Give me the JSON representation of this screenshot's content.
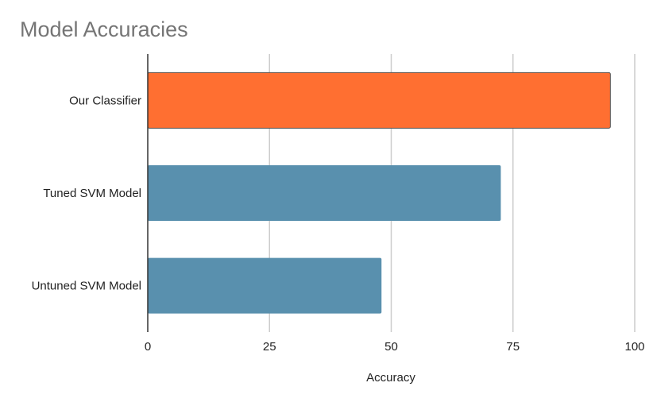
{
  "chart_data": {
    "type": "bar",
    "orientation": "horizontal",
    "title": "Model Accuracies",
    "xlabel": "Accuracy",
    "ylabel": "",
    "categories": [
      "Our Classifier",
      "Tuned SVM Model",
      "Untuned SVM Model"
    ],
    "values": [
      95,
      72.5,
      48
    ],
    "bar_colors": [
      "#ff6f31",
      "#5990ae",
      "#5990ae"
    ],
    "xlim": [
      0,
      100
    ],
    "xticks": [
      0,
      25,
      50,
      75,
      100
    ],
    "grid": true,
    "legend": "none"
  },
  "colors": {
    "title": "#757575",
    "gridline": "#cccccc",
    "axis_line": "#333333",
    "text": "#222222"
  }
}
